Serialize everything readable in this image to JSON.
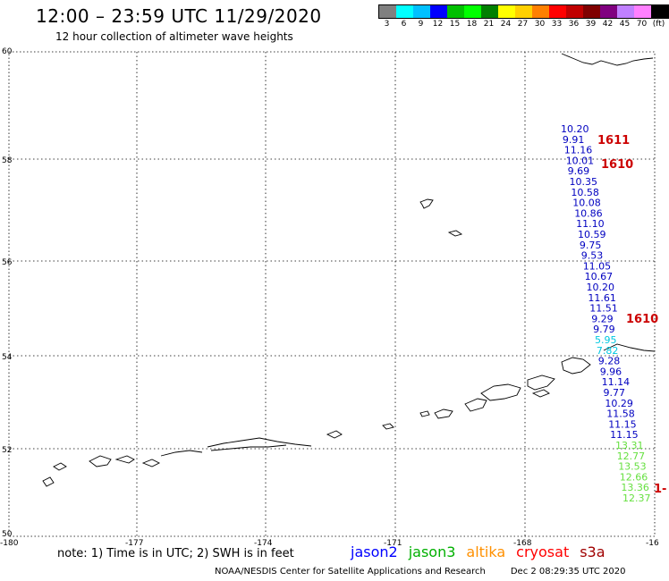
{
  "header": {
    "title": "12:00 – 23:59 UTC 11/29/2020",
    "subtitle": "12 hour collection of altimeter wave heights"
  },
  "legend": {
    "colors": [
      "#808080",
      "#00ffff",
      "#00c0ff",
      "#0000ff",
      "#00c000",
      "#00ff00",
      "#008000",
      "#ffff00",
      "#ffd000",
      "#ff8000",
      "#ff0000",
      "#c00000",
      "#800000",
      "#800080",
      "#c080ff",
      "#ff80ff",
      "#000000"
    ],
    "labels": [
      "3",
      "6",
      "9",
      "12",
      "15",
      "18",
      "21",
      "24",
      "27",
      "30",
      "33",
      "36",
      "39",
      "42",
      "45",
      "70",
      "(ft)"
    ]
  },
  "map": {
    "lat_labels": [
      "60",
      "58",
      "56",
      "54",
      "52",
      "50"
    ],
    "lon_labels": [
      "-180",
      "-177",
      "-174",
      "-171",
      "-168",
      "-16"
    ],
    "jason2_values": [
      "10.20",
      "9.91",
      "11.16",
      "10.01",
      "9.69",
      "10.35",
      "10.58",
      "10.08",
      "10.86",
      "11.10",
      "10.59",
      "9.75",
      "9.53",
      "11.05",
      "10.67",
      "10.20",
      "11.61",
      "11.51",
      "9.29",
      "9.79",
      "5.95",
      "7.82",
      "9.28",
      "9.96",
      "11.14",
      "9.77",
      "10.29",
      "11.58",
      "11.15",
      "11.15"
    ],
    "jason3_values": [
      "13.31",
      "12.77",
      "13.53",
      "12.66",
      "13.36",
      "12.37"
    ],
    "cryosat_values": [
      "1611",
      "1610",
      "1610",
      "1-"
    ],
    "colors": {
      "jason2": "#0000c0",
      "cyan": "#00c8e0",
      "jason3": "#66e040",
      "cryosat": "#cc0000"
    }
  },
  "footer": {
    "note": "note:  1) Time is in UTC;  2) SWH is in feet",
    "satellites": [
      {
        "name": "jason2",
        "color": "#0000ff"
      },
      {
        "name": "jason3",
        "color": "#00b000"
      },
      {
        "name": "altika",
        "color": "#ff9000"
      },
      {
        "name": "cryosat",
        "color": "#ff0000"
      },
      {
        "name": "s3a",
        "color": "#a00000"
      }
    ],
    "credit": "NOAA/NESDIS Center for Satellite Applications and Research",
    "timestamp": "Dec  2 08:29:35 UTC 2020"
  }
}
